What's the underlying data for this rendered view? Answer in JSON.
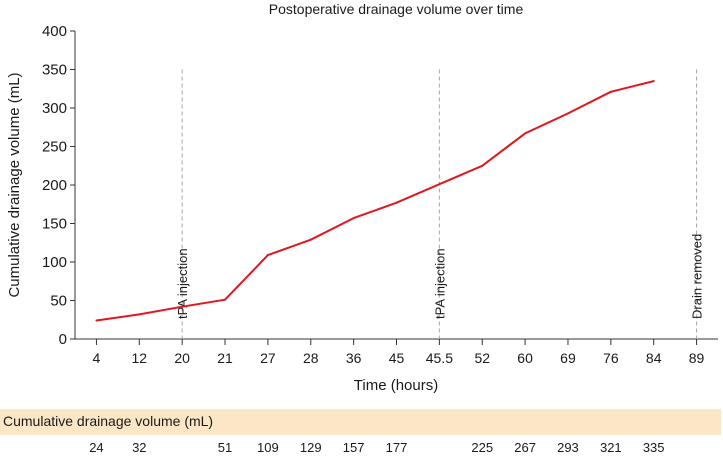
{
  "chart_data": {
    "type": "line",
    "title": "Postoperative drainage volume over time",
    "xlabel": "Time (hours)",
    "ylabel": "Cumulative drainage volume (mL)",
    "ylim": [
      0,
      400
    ],
    "yticks": [
      "0",
      "50",
      "100",
      "150",
      "200",
      "250",
      "300",
      "350",
      "400"
    ],
    "categories": [
      "4",
      "12",
      "20",
      "21",
      "27",
      "28",
      "36",
      "45",
      "45.5",
      "52",
      "60",
      "69",
      "76",
      "84",
      "89"
    ],
    "series": [
      {
        "name": "Cumulative drainage volume (mL)",
        "color": "#e0171f",
        "values": [
          24,
          32,
          null,
          51,
          109,
          129,
          157,
          177,
          null,
          225,
          267,
          293,
          321,
          335,
          null
        ],
        "line_values": [
          24,
          32,
          42,
          51,
          109,
          129,
          157,
          177,
          201,
          225,
          267,
          293,
          321,
          335,
          null
        ]
      }
    ],
    "annotations": [
      {
        "category": "20",
        "label": "tPA injection",
        "line_top": 350
      },
      {
        "category": "45.5",
        "label": "tPA injection",
        "line_top": 350
      },
      {
        "category": "89",
        "label": "Drain removed",
        "line_top": 350
      }
    ],
    "annotation_color": "#a6a6a6"
  },
  "table": {
    "title": "Cumulative drainage volume (mL)",
    "values": [
      "24",
      "32",
      "",
      "51",
      "109",
      "129",
      "157",
      "177",
      "",
      "225",
      "267",
      "293",
      "321",
      "335",
      ""
    ]
  }
}
